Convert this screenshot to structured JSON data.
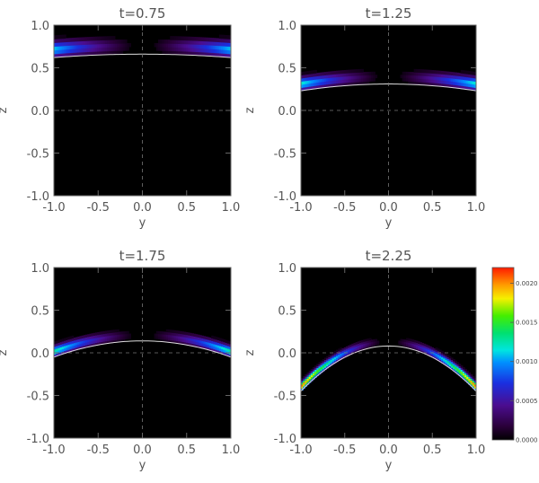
{
  "chart_data": {
    "type": "heatmap",
    "xlabel": "y",
    "ylabel": "z",
    "xlim": [
      -1.0,
      1.0
    ],
    "ylim": [
      -1.0,
      1.0
    ],
    "xticks": [
      "-1.0",
      "-0.5",
      "0.0",
      "0.5",
      "1.0"
    ],
    "yticks": [
      "-1.0",
      "-0.5",
      "0.0",
      "0.5",
      "1.0"
    ],
    "grid": "dashed lines at y=0 and z=0",
    "colorscale": "rainbow (black-purple-blue-cyan-green-yellow-red)",
    "colorbar": {
      "min": 0.0,
      "max": 0.0022,
      "ticks": [
        "0.0000",
        "0.0005",
        "0.0010",
        "0.0015",
        "0.0020"
      ]
    },
    "panels": [
      {
        "title": "t=0.75",
        "boundary_z_center": 0.66,
        "boundary_z_edge": 0.62,
        "band_peak": 0.0011
      },
      {
        "title": "t=1.25",
        "boundary_z_center": 0.31,
        "boundary_z_edge": 0.23,
        "band_peak": 0.0012
      },
      {
        "title": "t=1.75",
        "boundary_z_center": 0.14,
        "boundary_z_edge": -0.05,
        "band_peak": 0.0013
      },
      {
        "title": "t=2.25",
        "boundary_z_center": 0.08,
        "boundary_z_edge": -0.45,
        "band_peak": 0.0021
      }
    ]
  }
}
